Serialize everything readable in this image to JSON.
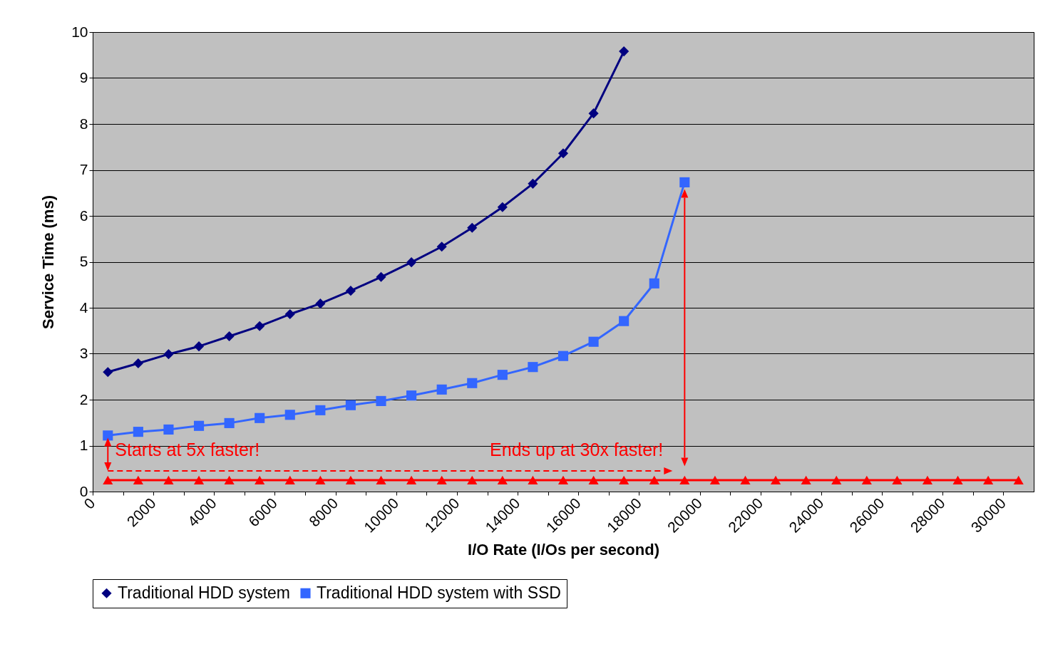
{
  "chart_data": {
    "type": "line",
    "xlabel": "I/O Rate (I/Os per second)",
    "ylabel": "Service Time (ms)",
    "x": [
      500,
      1500,
      2500,
      3500,
      4500,
      5500,
      6500,
      7500,
      8500,
      9500,
      10500,
      11500,
      12500,
      13500,
      14500,
      15500,
      16500,
      17500,
      18500,
      19500,
      20500,
      21500,
      22500,
      23500,
      24500,
      25500,
      26500,
      27500,
      28500,
      29500,
      30500
    ],
    "series": [
      {
        "name": "Traditional HDD system",
        "color": "#000080",
        "marker": "diamond",
        "values": [
          2.6,
          2.79,
          2.99,
          3.16,
          3.38,
          3.6,
          3.86,
          4.09,
          4.37,
          4.67,
          4.99,
          5.33,
          5.74,
          6.19,
          6.7,
          7.36,
          8.23,
          9.58,
          null,
          null,
          null,
          null,
          null,
          null,
          null,
          null,
          null,
          null,
          null,
          null,
          null
        ]
      },
      {
        "name": "Traditional HDD system with SSD",
        "color": "#3366ff",
        "marker": "square",
        "values": [
          1.22,
          1.3,
          1.35,
          1.43,
          1.49,
          1.6,
          1.67,
          1.77,
          1.88,
          1.97,
          2.09,
          2.22,
          2.36,
          2.54,
          2.71,
          2.95,
          3.26,
          3.71,
          4.53,
          6.73,
          null,
          null,
          null,
          null,
          null,
          null,
          null,
          null,
          null,
          null,
          null
        ]
      },
      {
        "color": "#ff0000",
        "marker": "triangle",
        "values": [
          0.25,
          0.25,
          0.25,
          0.25,
          0.25,
          0.25,
          0.25,
          0.25,
          0.25,
          0.25,
          0.25,
          0.25,
          0.25,
          0.25,
          0.25,
          0.25,
          0.25,
          0.25,
          0.25,
          0.25,
          0.25,
          0.25,
          0.25,
          0.25,
          0.25,
          0.25,
          0.25,
          0.25,
          0.25,
          0.25,
          0.25
        ]
      }
    ],
    "xlim": [
      0,
      31000
    ],
    "xticks": [
      0,
      {
        "value": 1000,
        "label": null
      },
      2000,
      {
        "value": 3000,
        "label": null
      },
      4000,
      {
        "value": 5000,
        "label": null
      },
      6000,
      {
        "value": 7000,
        "label": null
      },
      8000,
      {
        "value": 9000,
        "label": null
      },
      10000,
      {
        "value": 11000,
        "label": null
      },
      12000,
      {
        "value": 13000,
        "label": null
      },
      14000,
      {
        "value": 15000,
        "label": null
      },
      16000,
      {
        "value": 17000,
        "label": null
      },
      18000,
      {
        "value": 19000,
        "label": null
      },
      20000,
      {
        "value": 21000,
        "label": null
      },
      22000,
      {
        "value": 23000,
        "label": null
      },
      24000,
      {
        "value": 25000,
        "label": null
      },
      26000,
      {
        "value": 27000,
        "label": null
      },
      28000,
      {
        "value": 29000,
        "label": null
      },
      30000
    ],
    "ylim": [
      0,
      10
    ],
    "yticks": [
      0,
      1,
      2,
      3,
      4,
      5,
      6,
      7,
      8,
      9,
      10
    ],
    "grid": "y",
    "legend": "bottom",
    "annotations": [
      "Starts at 5x faster!",
      "Ends up at 30x faster!"
    ]
  }
}
